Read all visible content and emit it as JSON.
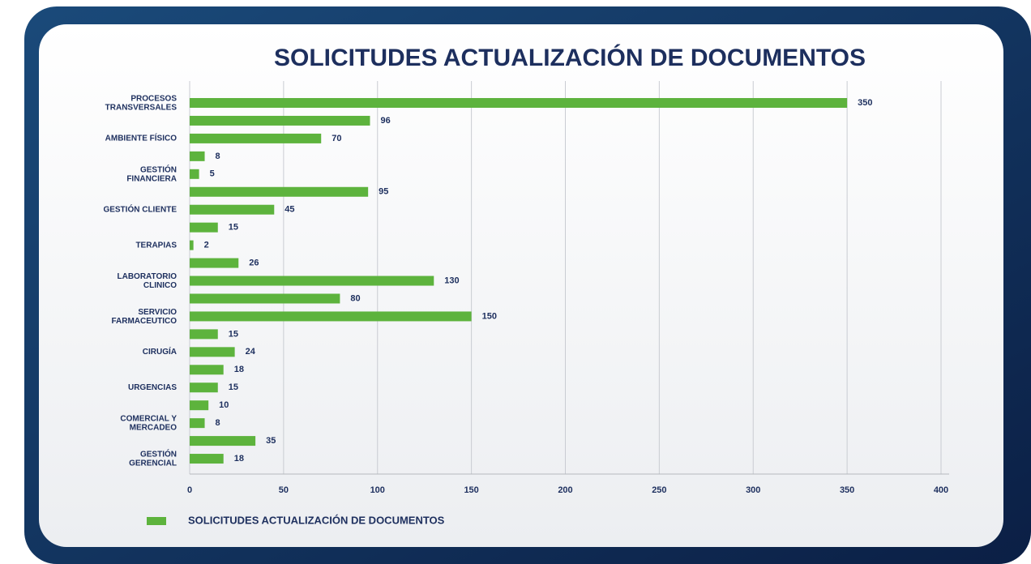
{
  "chart_data": {
    "type": "hbar",
    "title": "SOLICITUDES ACTUALIZACIÓN DE DOCUMENTOS",
    "categories": [
      "PROCESOS\nTRANSVERSALES",
      null,
      "AMBIENTE FÍSICO",
      null,
      "GESTIÓN\nFINANCIERA",
      null,
      "GESTIÓN CLIENTE",
      null,
      "TERAPIAS",
      null,
      "LABORATORIO\nCLINICO",
      null,
      "SERVICIO\nFARMACEUTICO",
      null,
      "CIRUGÍA",
      null,
      "URGENCIAS",
      null,
      "COMERCIAL Y\nMERCADEO",
      null,
      "GESTIÓN\nGERENCIAL"
    ],
    "series": [
      {
        "name": "SOLICITUDES ACTUALIZACIÓN DE DOCUMENTOS",
        "color": "#5db33d",
        "values": [
          350,
          96,
          70,
          8,
          5,
          95,
          45,
          15,
          2,
          26,
          130,
          80,
          150,
          15,
          24,
          18,
          15,
          10,
          8,
          35,
          18
        ]
      }
    ],
    "xlim": [
      0,
      400
    ],
    "xticks": [
      0,
      50,
      100,
      150,
      200,
      250,
      300,
      350,
      400
    ],
    "grid": true,
    "legend": "bottom-left"
  }
}
